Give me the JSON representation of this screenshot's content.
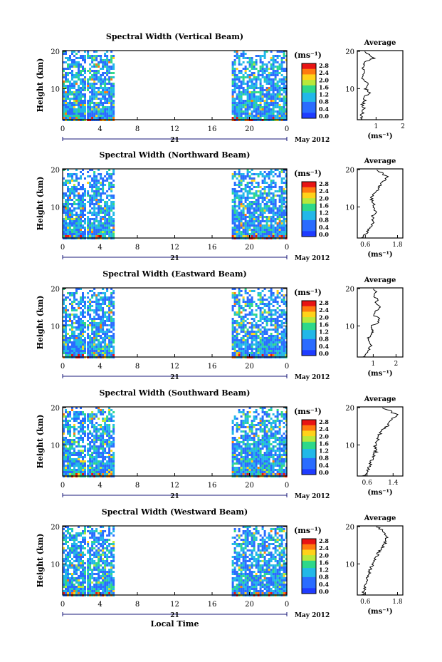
{
  "panels": [
    {
      "title": "Spectral Width (Vertical Beam)",
      "avg_ticks": [
        "1",
        "2"
      ],
      "avg_range": [
        0.3,
        2.0
      ]
    },
    {
      "title": "Spectral Width (Northward Beam)",
      "avg_ticks": [
        "0.6",
        "1.8"
      ],
      "avg_range": [
        0.3,
        2.0
      ]
    },
    {
      "title": "Spectral Width (Eastward Beam)",
      "avg_ticks": [
        "1",
        "2"
      ],
      "avg_range": [
        0.3,
        2.3
      ]
    },
    {
      "title": "Spectral Width (Southward Beam)",
      "avg_ticks": [
        "0.6",
        "1.4"
      ],
      "avg_range": [
        0.3,
        1.7
      ]
    },
    {
      "title": "Spectral Width (Westward Beam)",
      "avg_ticks": [
        "0.6",
        "1.8"
      ],
      "avg_range": [
        0.3,
        2.0
      ]
    }
  ],
  "common": {
    "ylabel": "Height (km)",
    "y_ticks": [
      "20",
      "10"
    ],
    "x_ticks": [
      "0",
      "4",
      "8",
      "12",
      "16",
      "20",
      "0"
    ],
    "day_label": "21",
    "date_label": "May 2012",
    "xlabel": "Local Time",
    "colorbar_unit": "(ms⁻¹)",
    "colorbar_ticks": [
      "2.8",
      "2.4",
      "2.0",
      "1.6",
      "1.2",
      "0.8",
      "0.4",
      "0.0"
    ],
    "avg_title": "Average",
    "avg_xlabel": "(ms⁻¹)"
  },
  "chart_data": [
    {
      "type": "heatmap",
      "title": "Spectral Width (Vertical Beam)",
      "xlabel": "",
      "ylabel": "Height (km)",
      "xlim": [
        0,
        24
      ],
      "ylim": [
        2,
        20
      ],
      "colorbar": {
        "label": "(ms⁻¹)",
        "range": [
          0.0,
          3.0
        ]
      },
      "data_coverage_hours": [
        [
          0,
          2.3
        ],
        [
          2.6,
          5.4
        ],
        [
          18.1,
          24
        ]
      ]
    },
    {
      "type": "heatmap",
      "title": "Spectral Width (Northward Beam)",
      "xlabel": "",
      "ylabel": "Height (km)",
      "xlim": [
        0,
        24
      ],
      "ylim": [
        2,
        20
      ],
      "colorbar": {
        "label": "(ms⁻¹)",
        "range": [
          0.0,
          3.0
        ]
      },
      "data_coverage_hours": [
        [
          0,
          2.3
        ],
        [
          2.6,
          5.4
        ],
        [
          18.1,
          24
        ]
      ]
    },
    {
      "type": "heatmap",
      "title": "Spectral Width (Eastward Beam)",
      "xlabel": "",
      "ylabel": "Height (km)",
      "xlim": [
        0,
        24
      ],
      "ylim": [
        2,
        20
      ],
      "colorbar": {
        "label": "(ms⁻¹)",
        "range": [
          0.0,
          3.0
        ]
      },
      "data_coverage_hours": [
        [
          0,
          2.3
        ],
        [
          2.6,
          5.4
        ],
        [
          18.1,
          24
        ]
      ]
    },
    {
      "type": "heatmap",
      "title": "Spectral Width (Southward Beam)",
      "xlabel": "",
      "ylabel": "Height (km)",
      "xlim": [
        0,
        24
      ],
      "ylim": [
        2,
        20
      ],
      "colorbar": {
        "label": "(ms⁻¹)",
        "range": [
          0.0,
          3.0
        ]
      },
      "data_coverage_hours": [
        [
          0,
          2.3
        ],
        [
          2.6,
          5.4
        ],
        [
          18.1,
          24
        ]
      ]
    },
    {
      "type": "heatmap",
      "title": "Spectral Width (Westward Beam)",
      "xlabel": "Local Time",
      "ylabel": "Height (km)",
      "xlim": [
        0,
        24
      ],
      "ylim": [
        2,
        20
      ],
      "colorbar": {
        "label": "(ms⁻¹)",
        "range": [
          0.0,
          3.0
        ]
      },
      "data_coverage_hours": [
        [
          0,
          2.3
        ],
        [
          2.6,
          5.4
        ],
        [
          18.1,
          24
        ]
      ]
    },
    {
      "type": "line",
      "title": "Average",
      "panel": "Vertical Beam",
      "xlabel": "(ms⁻¹)",
      "y": [
        2,
        3,
        4,
        5,
        6,
        7,
        8,
        9,
        10,
        11,
        12,
        13,
        14,
        15,
        16,
        17,
        18,
        19,
        20
      ],
      "x": [
        0.5,
        0.45,
        0.5,
        0.55,
        0.5,
        0.6,
        0.55,
        0.8,
        0.6,
        0.7,
        0.6,
        0.5,
        0.55,
        0.5,
        0.5,
        0.6,
        0.9,
        0.7,
        0.5
      ]
    },
    {
      "type": "line",
      "title": "Average",
      "panel": "Northward Beam",
      "xlabel": "(ms⁻¹)",
      "y": [
        2,
        3,
        4,
        5,
        6,
        7,
        8,
        9,
        10,
        11,
        12,
        13,
        14,
        15,
        16,
        17,
        18,
        19,
        20
      ],
      "x": [
        0.5,
        0.6,
        0.7,
        0.8,
        0.9,
        0.85,
        0.9,
        1.0,
        0.9,
        0.95,
        0.8,
        0.9,
        1.0,
        1.1,
        1.2,
        1.3,
        1.4,
        1.2,
        1.0
      ]
    },
    {
      "type": "line",
      "title": "Average",
      "panel": "Eastward Beam",
      "xlabel": "(ms⁻¹)",
      "y": [
        2,
        3,
        4,
        5,
        6,
        7,
        8,
        9,
        10,
        11,
        12,
        13,
        14,
        15,
        16,
        17,
        18,
        19,
        20
      ],
      "x": [
        0.6,
        0.7,
        0.8,
        0.9,
        0.85,
        0.8,
        0.9,
        1.0,
        0.9,
        1.2,
        1.3,
        1.0,
        1.1,
        1.3,
        1.1,
        1.2,
        1.0,
        1.1,
        0.9
      ]
    },
    {
      "type": "line",
      "title": "Average",
      "panel": "Southward Beam",
      "xlabel": "(ms⁻¹)",
      "y": [
        2,
        3,
        4,
        5,
        6,
        7,
        8,
        9,
        10,
        11,
        12,
        13,
        14,
        15,
        16,
        17,
        18,
        19,
        20
      ],
      "x": [
        0.5,
        0.6,
        0.65,
        0.7,
        0.75,
        0.8,
        0.85,
        0.9,
        0.85,
        0.9,
        0.95,
        1.0,
        1.05,
        1.2,
        1.3,
        1.4,
        1.5,
        1.3,
        1.0
      ]
    },
    {
      "type": "line",
      "title": "Average",
      "panel": "Westward Beam",
      "xlabel": "(ms⁻¹)",
      "y": [
        2,
        3,
        4,
        5,
        6,
        7,
        8,
        9,
        10,
        11,
        12,
        13,
        14,
        15,
        16,
        17,
        18,
        19,
        20
      ],
      "x": [
        0.5,
        0.55,
        0.6,
        0.6,
        0.65,
        0.7,
        0.75,
        0.8,
        0.9,
        0.95,
        1.0,
        1.1,
        1.2,
        1.3,
        1.35,
        1.4,
        1.3,
        1.2,
        1.0
      ]
    }
  ]
}
